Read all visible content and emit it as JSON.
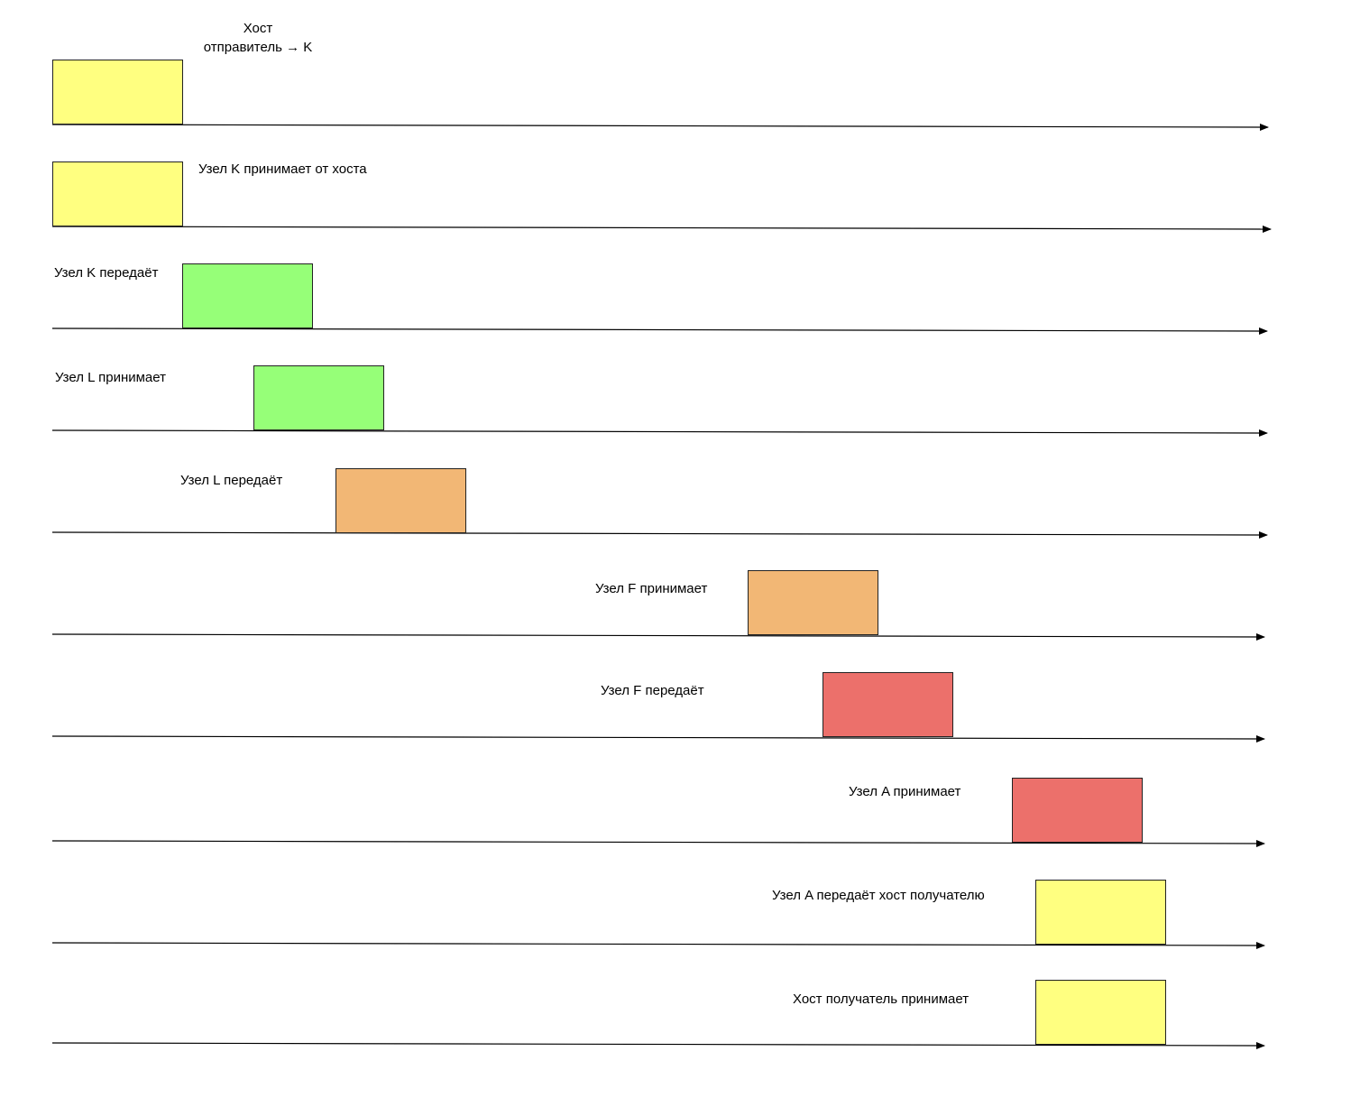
{
  "colors": {
    "yellow": "#ffff80",
    "green": "#96ff78",
    "orange": "#f2b775",
    "red": "#ec706b",
    "line": "#000000"
  },
  "lanes": [
    {
      "label": "Хост\nотправитель → K",
      "block_color": "yellow"
    },
    {
      "label": "Узел K принимает от хоста",
      "block_color": "yellow"
    },
    {
      "label": "Узел K передаёт",
      "block_color": "green"
    },
    {
      "label": "Узел L принимает",
      "block_color": "green"
    },
    {
      "label": "Узел L передаёт",
      "block_color": "orange"
    },
    {
      "label": "Узел F принимает",
      "block_color": "orange"
    },
    {
      "label": "Узел F передаёт",
      "block_color": "red"
    },
    {
      "label": "Узел A принимает",
      "block_color": "red"
    },
    {
      "label": "Узел A передаёт хост получателю",
      "block_color": "yellow"
    },
    {
      "label": "Хост получатель принимает",
      "block_color": "yellow"
    }
  ]
}
